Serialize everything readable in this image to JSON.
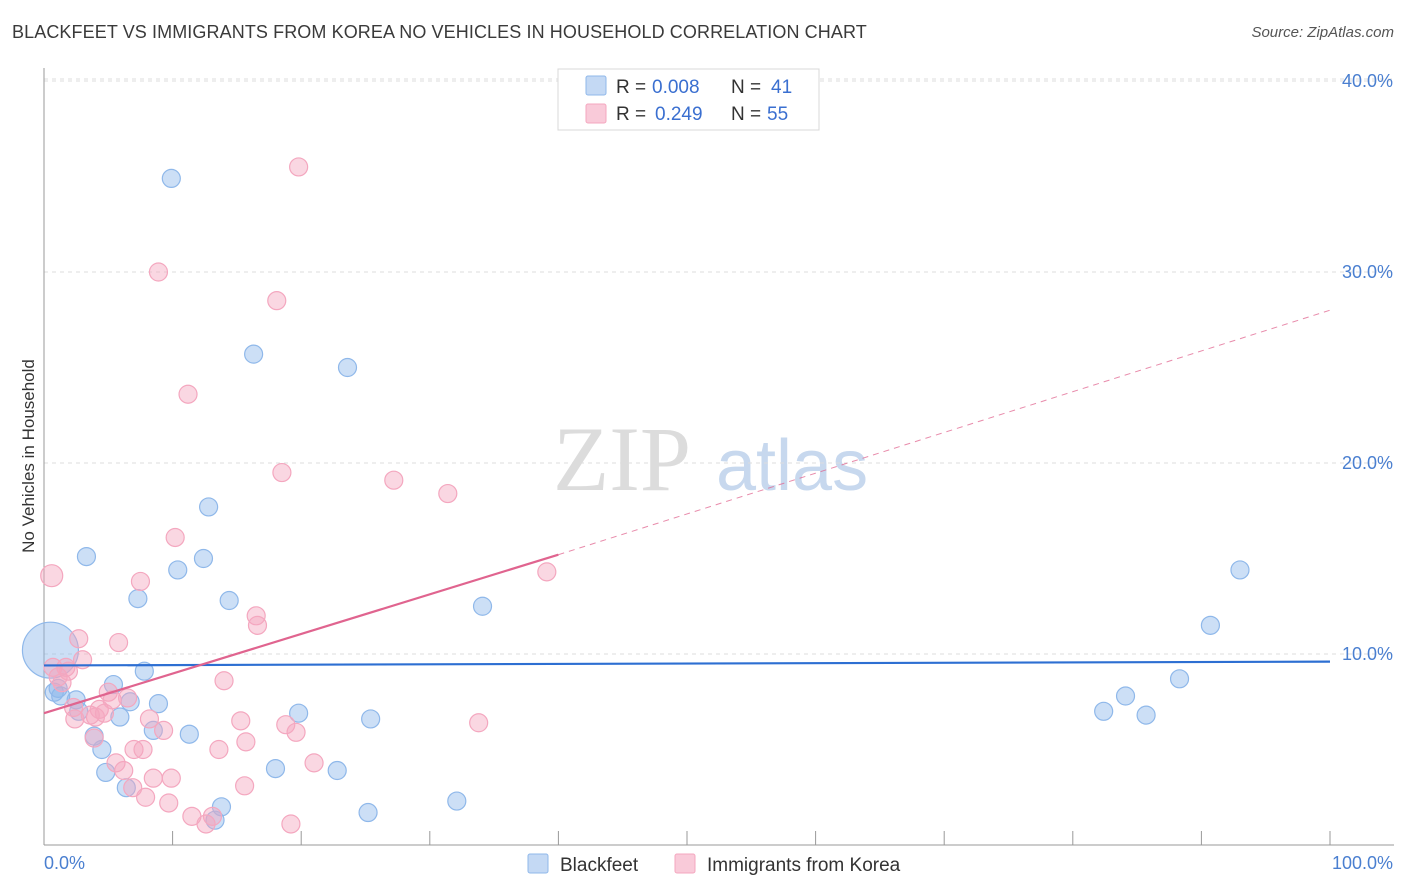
{
  "title": "BLACKFEET VS IMMIGRANTS FROM KOREA NO VEHICLES IN HOUSEHOLD CORRELATION CHART",
  "source": "Source: ZipAtlas.com",
  "watermark": {
    "zip": "ZIP",
    "atlas": "atlas"
  },
  "chart_data": {
    "type": "scatter",
    "title": "BLACKFEET VS IMMIGRANTS FROM KOREA NO VEHICLES IN HOUSEHOLD CORRELATION CHART",
    "xlabel": "",
    "ylabel": "No Vehicles in Household",
    "xlim": [
      0,
      100
    ],
    "ylim": [
      0,
      42
    ],
    "x_tick_labels": [
      "0.0%",
      "100.0%"
    ],
    "y_ticks": [
      10,
      20,
      30,
      40
    ],
    "y_tick_labels": [
      "10.0%",
      "20.0%",
      "30.0%",
      "40.0%"
    ],
    "grid": true,
    "legend_position": "top-center",
    "series": [
      {
        "name": "Blackfeet",
        "color": "#8fb8ea",
        "trend_color": "#2d6fd2",
        "R": "0.008",
        "N": "41",
        "trend": {
          "x0": 0,
          "y0": 9.4,
          "x1": 100,
          "y1": 9.6
        },
        "points": [
          [
            0.5,
            10.2,
            28
          ],
          [
            0.8,
            8.0,
            9
          ],
          [
            1.1,
            8.2,
            9
          ],
          [
            1.3,
            7.8,
            9
          ],
          [
            2.5,
            7.6,
            9
          ],
          [
            2.7,
            7.0,
            9
          ],
          [
            3.3,
            15.1,
            9
          ],
          [
            3.9,
            5.7,
            9
          ],
          [
            4.5,
            5.0,
            9
          ],
          [
            4.8,
            3.8,
            9
          ],
          [
            5.4,
            8.4,
            9
          ],
          [
            5.9,
            6.7,
            9
          ],
          [
            6.4,
            3.0,
            9
          ],
          [
            6.7,
            7.5,
            9
          ],
          [
            7.3,
            12.9,
            9
          ],
          [
            7.8,
            9.1,
            9
          ],
          [
            8.5,
            6.0,
            9
          ],
          [
            8.9,
            7.4,
            9
          ],
          [
            9.9,
            34.9,
            9
          ],
          [
            10.4,
            14.4,
            9
          ],
          [
            11.3,
            5.8,
            9
          ],
          [
            12.4,
            15.0,
            9
          ],
          [
            12.8,
            17.7,
            9
          ],
          [
            13.3,
            1.3,
            9
          ],
          [
            13.8,
            2.0,
            9
          ],
          [
            14.4,
            12.8,
            9
          ],
          [
            16.3,
            25.7,
            9
          ],
          [
            18.0,
            4.0,
            9
          ],
          [
            19.8,
            6.9,
            9
          ],
          [
            22.8,
            3.9,
            9
          ],
          [
            23.6,
            25.0,
            9
          ],
          [
            25.2,
            1.7,
            9
          ],
          [
            25.4,
            6.6,
            9
          ],
          [
            32.1,
            2.3,
            9
          ],
          [
            34.1,
            12.5,
            9
          ],
          [
            82.4,
            7.0,
            9
          ],
          [
            84.1,
            7.8,
            9
          ],
          [
            85.7,
            6.8,
            9
          ],
          [
            88.3,
            8.7,
            9
          ],
          [
            90.7,
            11.5,
            9
          ],
          [
            93.0,
            14.4,
            9
          ]
        ]
      },
      {
        "name": "Immigrants from Korea",
        "color": "#f4a7bf",
        "trend_color": "#e0648f",
        "R": "0.249",
        "N": "55",
        "trend": {
          "x0": 0,
          "y0": 6.9,
          "x1": 40,
          "y1": 15.2,
          "dash_x1": 100,
          "dash_y1": 28.0
        },
        "points": [
          [
            0.6,
            14.1,
            11
          ],
          [
            0.7,
            9.3,
            9
          ],
          [
            1.1,
            8.8,
            9
          ],
          [
            1.4,
            8.5,
            9
          ],
          [
            1.7,
            9.3,
            9
          ],
          [
            1.9,
            9.1,
            9
          ],
          [
            2.4,
            6.6,
            9
          ],
          [
            2.7,
            10.8,
            9
          ],
          [
            3.0,
            9.7,
            9
          ],
          [
            3.6,
            6.8,
            9
          ],
          [
            3.9,
            5.6,
            9
          ],
          [
            4.3,
            7.1,
            9
          ],
          [
            4.7,
            6.9,
            9
          ],
          [
            5.0,
            8.0,
            9
          ],
          [
            5.3,
            7.6,
            9
          ],
          [
            5.6,
            4.3,
            9
          ],
          [
            5.8,
            10.6,
            9
          ],
          [
            6.2,
            3.9,
            9
          ],
          [
            6.5,
            7.7,
            9
          ],
          [
            6.9,
            3.0,
            9
          ],
          [
            7.0,
            5.0,
            9
          ],
          [
            7.5,
            13.8,
            9
          ],
          [
            7.7,
            5.0,
            9
          ],
          [
            7.9,
            2.5,
            9
          ],
          [
            8.2,
            6.6,
            9
          ],
          [
            8.5,
            3.5,
            9
          ],
          [
            8.9,
            30.0,
            9
          ],
          [
            9.3,
            6.0,
            9
          ],
          [
            9.7,
            2.2,
            9
          ],
          [
            9.9,
            3.5,
            9
          ],
          [
            10.2,
            16.1,
            9
          ],
          [
            11.2,
            23.6,
            9
          ],
          [
            11.5,
            1.5,
            9
          ],
          [
            12.6,
            1.1,
            9
          ],
          [
            13.1,
            1.5,
            9
          ],
          [
            13.6,
            5.0,
            9
          ],
          [
            14.0,
            8.6,
            9
          ],
          [
            15.3,
            6.5,
            9
          ],
          [
            15.6,
            3.1,
            9
          ],
          [
            15.7,
            5.4,
            9
          ],
          [
            16.5,
            12.0,
            9
          ],
          [
            16.6,
            11.5,
            9
          ],
          [
            18.1,
            28.5,
            9
          ],
          [
            18.5,
            19.5,
            9
          ],
          [
            18.8,
            6.3,
            9
          ],
          [
            19.2,
            1.1,
            9
          ],
          [
            19.6,
            5.9,
            9
          ],
          [
            19.8,
            35.5,
            9
          ],
          [
            21.0,
            4.3,
            9
          ],
          [
            27.2,
            19.1,
            9
          ],
          [
            31.4,
            18.4,
            9
          ],
          [
            33.8,
            6.4,
            9
          ],
          [
            39.1,
            14.3,
            9
          ],
          [
            2.3,
            7.2,
            9
          ],
          [
            4.0,
            6.7,
            9
          ]
        ]
      }
    ]
  },
  "legend": {
    "rows": [
      {
        "r_label": "R =",
        "r_value": "0.008",
        "n_label": "N =",
        "n_value": "41"
      },
      {
        "r_label": "R =",
        "r_value": "0.249",
        "n_label": "N =",
        "n_value": "55"
      }
    ],
    "bottom": [
      "Blackfeet",
      "Immigrants from Korea"
    ]
  }
}
